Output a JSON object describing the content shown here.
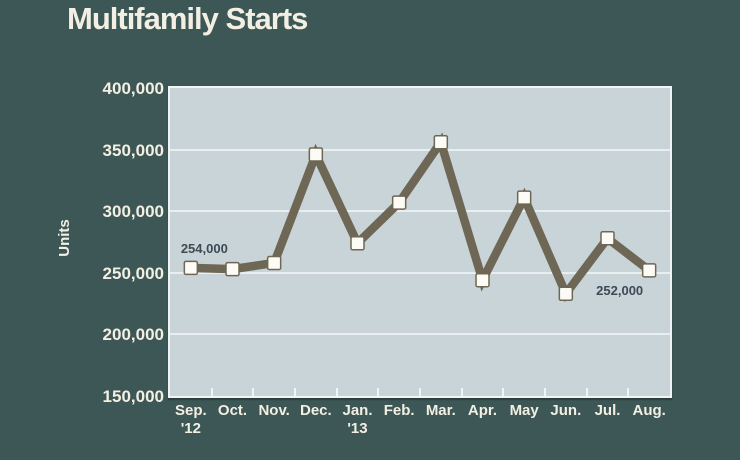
{
  "title": "Multifamily Starts",
  "colors": {
    "background": "#3C5755",
    "plot_background": "#C9D4D8",
    "plot_border": "#F0F4F5",
    "grid": "#E9EEF0",
    "line": "#6F6755",
    "marker_fill": "#FCFBF5",
    "axis_text": "#F3EFE3",
    "annotation_text": "#3B4A54"
  },
  "chart_data": {
    "type": "line",
    "title": "Multifamily Starts",
    "ylabel": "Units",
    "xlabel": "",
    "ylim": [
      150000,
      400000
    ],
    "ytick_step": 50000,
    "ytick_labels": [
      "400,000",
      "350,000",
      "300,000",
      "250,000",
      "200,000",
      "150,000"
    ],
    "grid": "horizontal",
    "legend": "none",
    "categories": [
      "Sep.",
      "Oct.",
      "Nov.",
      "Dec.",
      "Jan.",
      "Feb.",
      "Mar.",
      "Apr.",
      "May",
      "Jun.",
      "Jul.",
      "Aug."
    ],
    "category_sublabels": [
      "'12",
      "",
      "",
      "",
      "'13",
      "",
      "",
      "",
      "",
      "",
      "",
      ""
    ],
    "values": [
      254000,
      253000,
      258000,
      346000,
      274000,
      307000,
      356000,
      244000,
      311000,
      233000,
      278000,
      252000
    ],
    "annotations": [
      {
        "text": "254,000",
        "point_index": 0,
        "position": "above"
      },
      {
        "text": "252,000",
        "point_index": 11,
        "position": "below"
      }
    ]
  }
}
